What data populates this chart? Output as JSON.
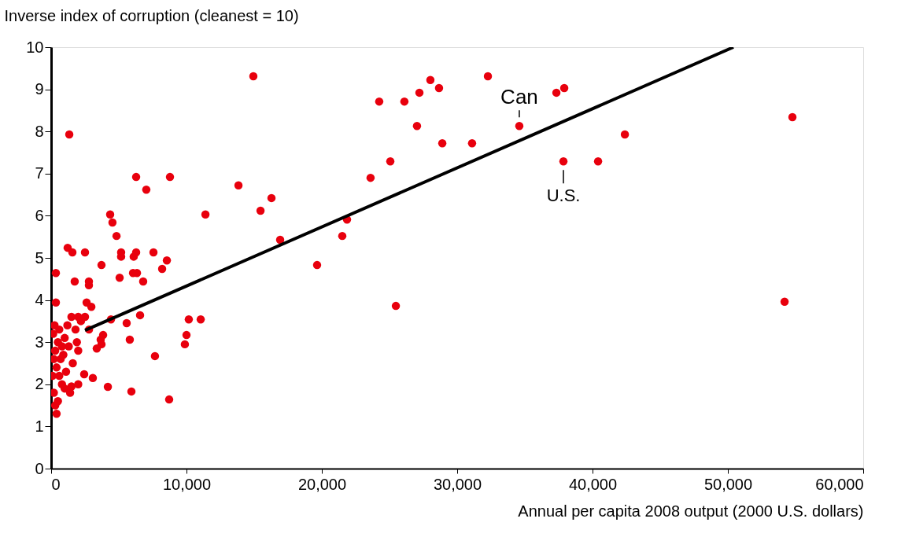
{
  "chart_data": {
    "type": "scatter",
    "ylabel": "Inverse index of corruption (cleanest = 10)",
    "xlabel": "Annual per capita 2008 output (2000 U.S. dollars)",
    "xlim": [
      0,
      60000
    ],
    "ylim": [
      0,
      10
    ],
    "xticks": [
      0,
      {
        "value": 10000,
        "label": "10,000"
      },
      {
        "value": 20000,
        "label": "20,000"
      },
      {
        "value": 30000,
        "label": "30,000"
      },
      {
        "value": 40000,
        "label": "40,000"
      },
      {
        "value": 50000,
        "label": "50,000"
      },
      {
        "value": 60000,
        "label": "60,000"
      }
    ],
    "yticks": [
      0,
      1,
      2,
      3,
      4,
      5,
      6,
      7,
      8,
      9,
      10
    ],
    "grid": false,
    "series": [
      {
        "color": "#e8000d",
        "marker": "circle",
        "x": [
          14940,
          13840,
          16280,
          15470,
          16920,
          19650,
          21510,
          21860,
          23600,
          25060,
          24240,
          26100,
          27210,
          28020,
          28660,
          27030,
          28900,
          31100,
          32270,
          34590,
          37330,
          37910,
          37850,
          40410,
          42390,
          54770,
          54190,
          25470,
          1340,
          6280,
          7030,
          8780,
          4360,
          4530,
          11400,
          4830,
          1220,
          1570,
          2500,
          3720,
          5170,
          5170,
          6100,
          6280,
          7560,
          8550,
          8200,
          350,
          1740,
          2790,
          2790,
          5060,
          6050,
          6340,
          6800,
          350,
          2620,
          2970,
          4420,
          6570,
          5580,
          10170,
          11050,
          10000,
          9880,
          5810,
          3840,
          3660,
          3720,
          3370,
          7670,
          2440,
          3080,
          4190,
          5930,
          8720,
          2000,
          2500,
          1500,
          1200,
          2200,
          1800,
          1000,
          500,
          300,
          200,
          400,
          600,
          800,
          1000,
          1500,
          2000,
          1300,
          900,
          1600,
          2000,
          300,
          400,
          200,
          100,
          250,
          600,
          1100,
          1400,
          2800,
          700,
          150,
          1900,
          500,
          800
        ],
        "values": [
          9.31,
          6.72,
          6.42,
          6.12,
          5.43,
          4.83,
          5.52,
          5.91,
          6.9,
          7.29,
          8.71,
          8.71,
          8.92,
          9.22,
          9.03,
          8.13,
          7.72,
          7.72,
          9.31,
          8.13,
          8.92,
          9.03,
          7.29,
          7.29,
          7.93,
          8.34,
          3.96,
          3.86,
          7.93,
          6.92,
          6.62,
          6.92,
          6.03,
          5.84,
          6.03,
          5.52,
          5.24,
          5.13,
          5.13,
          4.83,
          5.13,
          5.03,
          5.03,
          5.13,
          5.13,
          4.94,
          4.74,
          4.64,
          4.44,
          4.44,
          4.35,
          4.53,
          4.64,
          4.64,
          4.44,
          3.94,
          3.94,
          3.84,
          3.54,
          3.64,
          3.45,
          3.54,
          3.54,
          3.17,
          2.95,
          3.06,
          3.17,
          3.06,
          2.95,
          2.85,
          2.67,
          2.24,
          2.15,
          1.94,
          1.83,
          1.64,
          3.6,
          3.6,
          3.6,
          3.4,
          3.5,
          3.3,
          3.1,
          3.0,
          2.8,
          2.6,
          2.4,
          2.2,
          2.0,
          1.9,
          1.95,
          2.0,
          2.9,
          2.7,
          2.5,
          2.8,
          1.5,
          1.3,
          1.8,
          2.2,
          3.4,
          3.3,
          2.3,
          1.8,
          3.3,
          2.6,
          3.2,
          3.0,
          1.6,
          2.9
        ]
      },
      {
        "type": "line",
        "color": "#000000",
        "x": [
          2500,
          50410
        ],
        "values": [
          3.28,
          10
        ]
      }
    ],
    "annotations": [
      {
        "text": "Can",
        "x": 34590,
        "y": 8.13
      },
      {
        "text": "U.S.",
        "x": 37850,
        "y": 7.29
      }
    ]
  }
}
